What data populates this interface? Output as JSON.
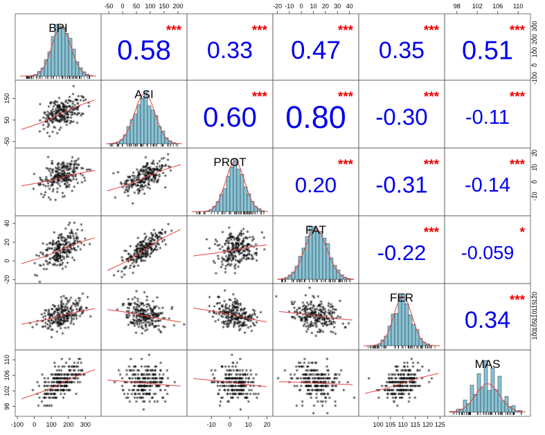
{
  "chart_data": {
    "type": "scatter-matrix",
    "variables": [
      "BPI",
      "ASI",
      "PROT",
      "FAT",
      "FER",
      "MAS"
    ],
    "ranges": {
      "BPI": [
        -100,
        380
      ],
      "ASI": [
        -70,
        225
      ],
      "PROT": [
        -22,
        22
      ],
      "FAT": [
        -22,
        46
      ],
      "FER": [
        93,
        126
      ],
      "MAS": [
        96,
        112
      ]
    },
    "means": {
      "BPI": 160,
      "ASI": 80,
      "PROT": 3,
      "FAT": 12,
      "FER": 110,
      "MAS": 104
    },
    "sds": {
      "BPI": 60,
      "ASI": 40,
      "PROT": 5.5,
      "FAT": 10,
      "FER": 4,
      "MAS": 2.5
    },
    "axis_ticks": {
      "bottom": [
        {
          "var": "BPI",
          "ticks": [
            "-100",
            "0",
            "100",
            "200",
            "300"
          ],
          "values": [
            -100,
            0,
            100,
            200,
            300
          ]
        },
        {
          "var": "PROT",
          "ticks": [
            "-10",
            "0",
            "10",
            "20"
          ],
          "values": [
            -10,
            0,
            10,
            20
          ]
        },
        {
          "var": "FER",
          "ticks": [
            "100",
            "105",
            "110",
            "115",
            "120",
            "125"
          ],
          "values": [
            100,
            105,
            110,
            115,
            120,
            125
          ]
        }
      ],
      "top": [
        {
          "var": "ASI",
          "ticks": [
            "-50",
            "0",
            "50",
            "100",
            "150",
            "200"
          ],
          "values": [
            -50,
            0,
            50,
            100,
            150,
            200
          ]
        },
        {
          "var": "FAT",
          "ticks": [
            "-20",
            "-10",
            "0",
            "10",
            "20",
            "30",
            "40"
          ],
          "values": [
            -20,
            -10,
            0,
            10,
            20,
            30,
            40
          ]
        },
        {
          "var": "MAS",
          "ticks": [
            "98",
            "102",
            "106",
            "110"
          ],
          "values": [
            98,
            102,
            106,
            110
          ]
        }
      ],
      "left": [
        {
          "var": "ASI",
          "ticks": [
            "-50",
            "50",
            "150"
          ],
          "values": [
            -50,
            50,
            150
          ]
        },
        {
          "var": "FAT",
          "ticks": [
            "-20",
            "0",
            "20",
            "40"
          ],
          "values": [
            -20,
            0,
            20,
            40
          ]
        },
        {
          "var": "MAS",
          "ticks": [
            "98",
            "102",
            "106",
            "110"
          ],
          "values": [
            98,
            102,
            106,
            110
          ]
        }
      ],
      "right": [
        {
          "var": "BPI",
          "ticks": [
            "-100",
            "0",
            "100",
            "200",
            "300"
          ],
          "values": [
            -100,
            0,
            100,
            200,
            300
          ]
        },
        {
          "var": "PROT",
          "ticks": [
            "-10",
            "0",
            "10",
            "20"
          ],
          "values": [
            -10,
            0,
            10,
            20
          ]
        },
        {
          "var": "FER",
          "ticks": [
            "100",
            "105",
            "110",
            "115",
            "120"
          ],
          "values": [
            100,
            105,
            110,
            115,
            120
          ]
        }
      ]
    },
    "correlations": [
      {
        "row": "BPI",
        "col": "ASI",
        "value": "0.58",
        "stars": "***"
      },
      {
        "row": "BPI",
        "col": "PROT",
        "value": "0.33",
        "stars": "***"
      },
      {
        "row": "BPI",
        "col": "FAT",
        "value": "0.47",
        "stars": "***"
      },
      {
        "row": "BPI",
        "col": "FER",
        "value": "0.35",
        "stars": "***"
      },
      {
        "row": "BPI",
        "col": "MAS",
        "value": "0.51",
        "stars": "***"
      },
      {
        "row": "ASI",
        "col": "PROT",
        "value": "0.60",
        "stars": "***"
      },
      {
        "row": "ASI",
        "col": "FAT",
        "value": "0.80",
        "stars": "***"
      },
      {
        "row": "ASI",
        "col": "FER",
        "value": "-0.30",
        "stars": "***"
      },
      {
        "row": "ASI",
        "col": "MAS",
        "value": "-0.11",
        "stars": "***"
      },
      {
        "row": "PROT",
        "col": "FAT",
        "value": "0.20",
        "stars": "***"
      },
      {
        "row": "PROT",
        "col": "FER",
        "value": "-0.31",
        "stars": "***"
      },
      {
        "row": "PROT",
        "col": "MAS",
        "value": "-0.14",
        "stars": "***"
      },
      {
        "row": "FAT",
        "col": "FER",
        "value": "-0.22",
        "stars": "***"
      },
      {
        "row": "FAT",
        "col": "MAS",
        "value": "-0.059",
        "stars": "*"
      },
      {
        "row": "FER",
        "col": "MAS",
        "value": "0.34",
        "stars": "***"
      }
    ],
    "colors": {
      "histogram_fill": "#87c3d6",
      "density_line": "#e8413c",
      "loess_line": "#e8413c",
      "coefficient": "#0000ee",
      "significance": "#ee0000",
      "points": "#111111"
    },
    "point_symbol": "*",
    "grid": false
  }
}
